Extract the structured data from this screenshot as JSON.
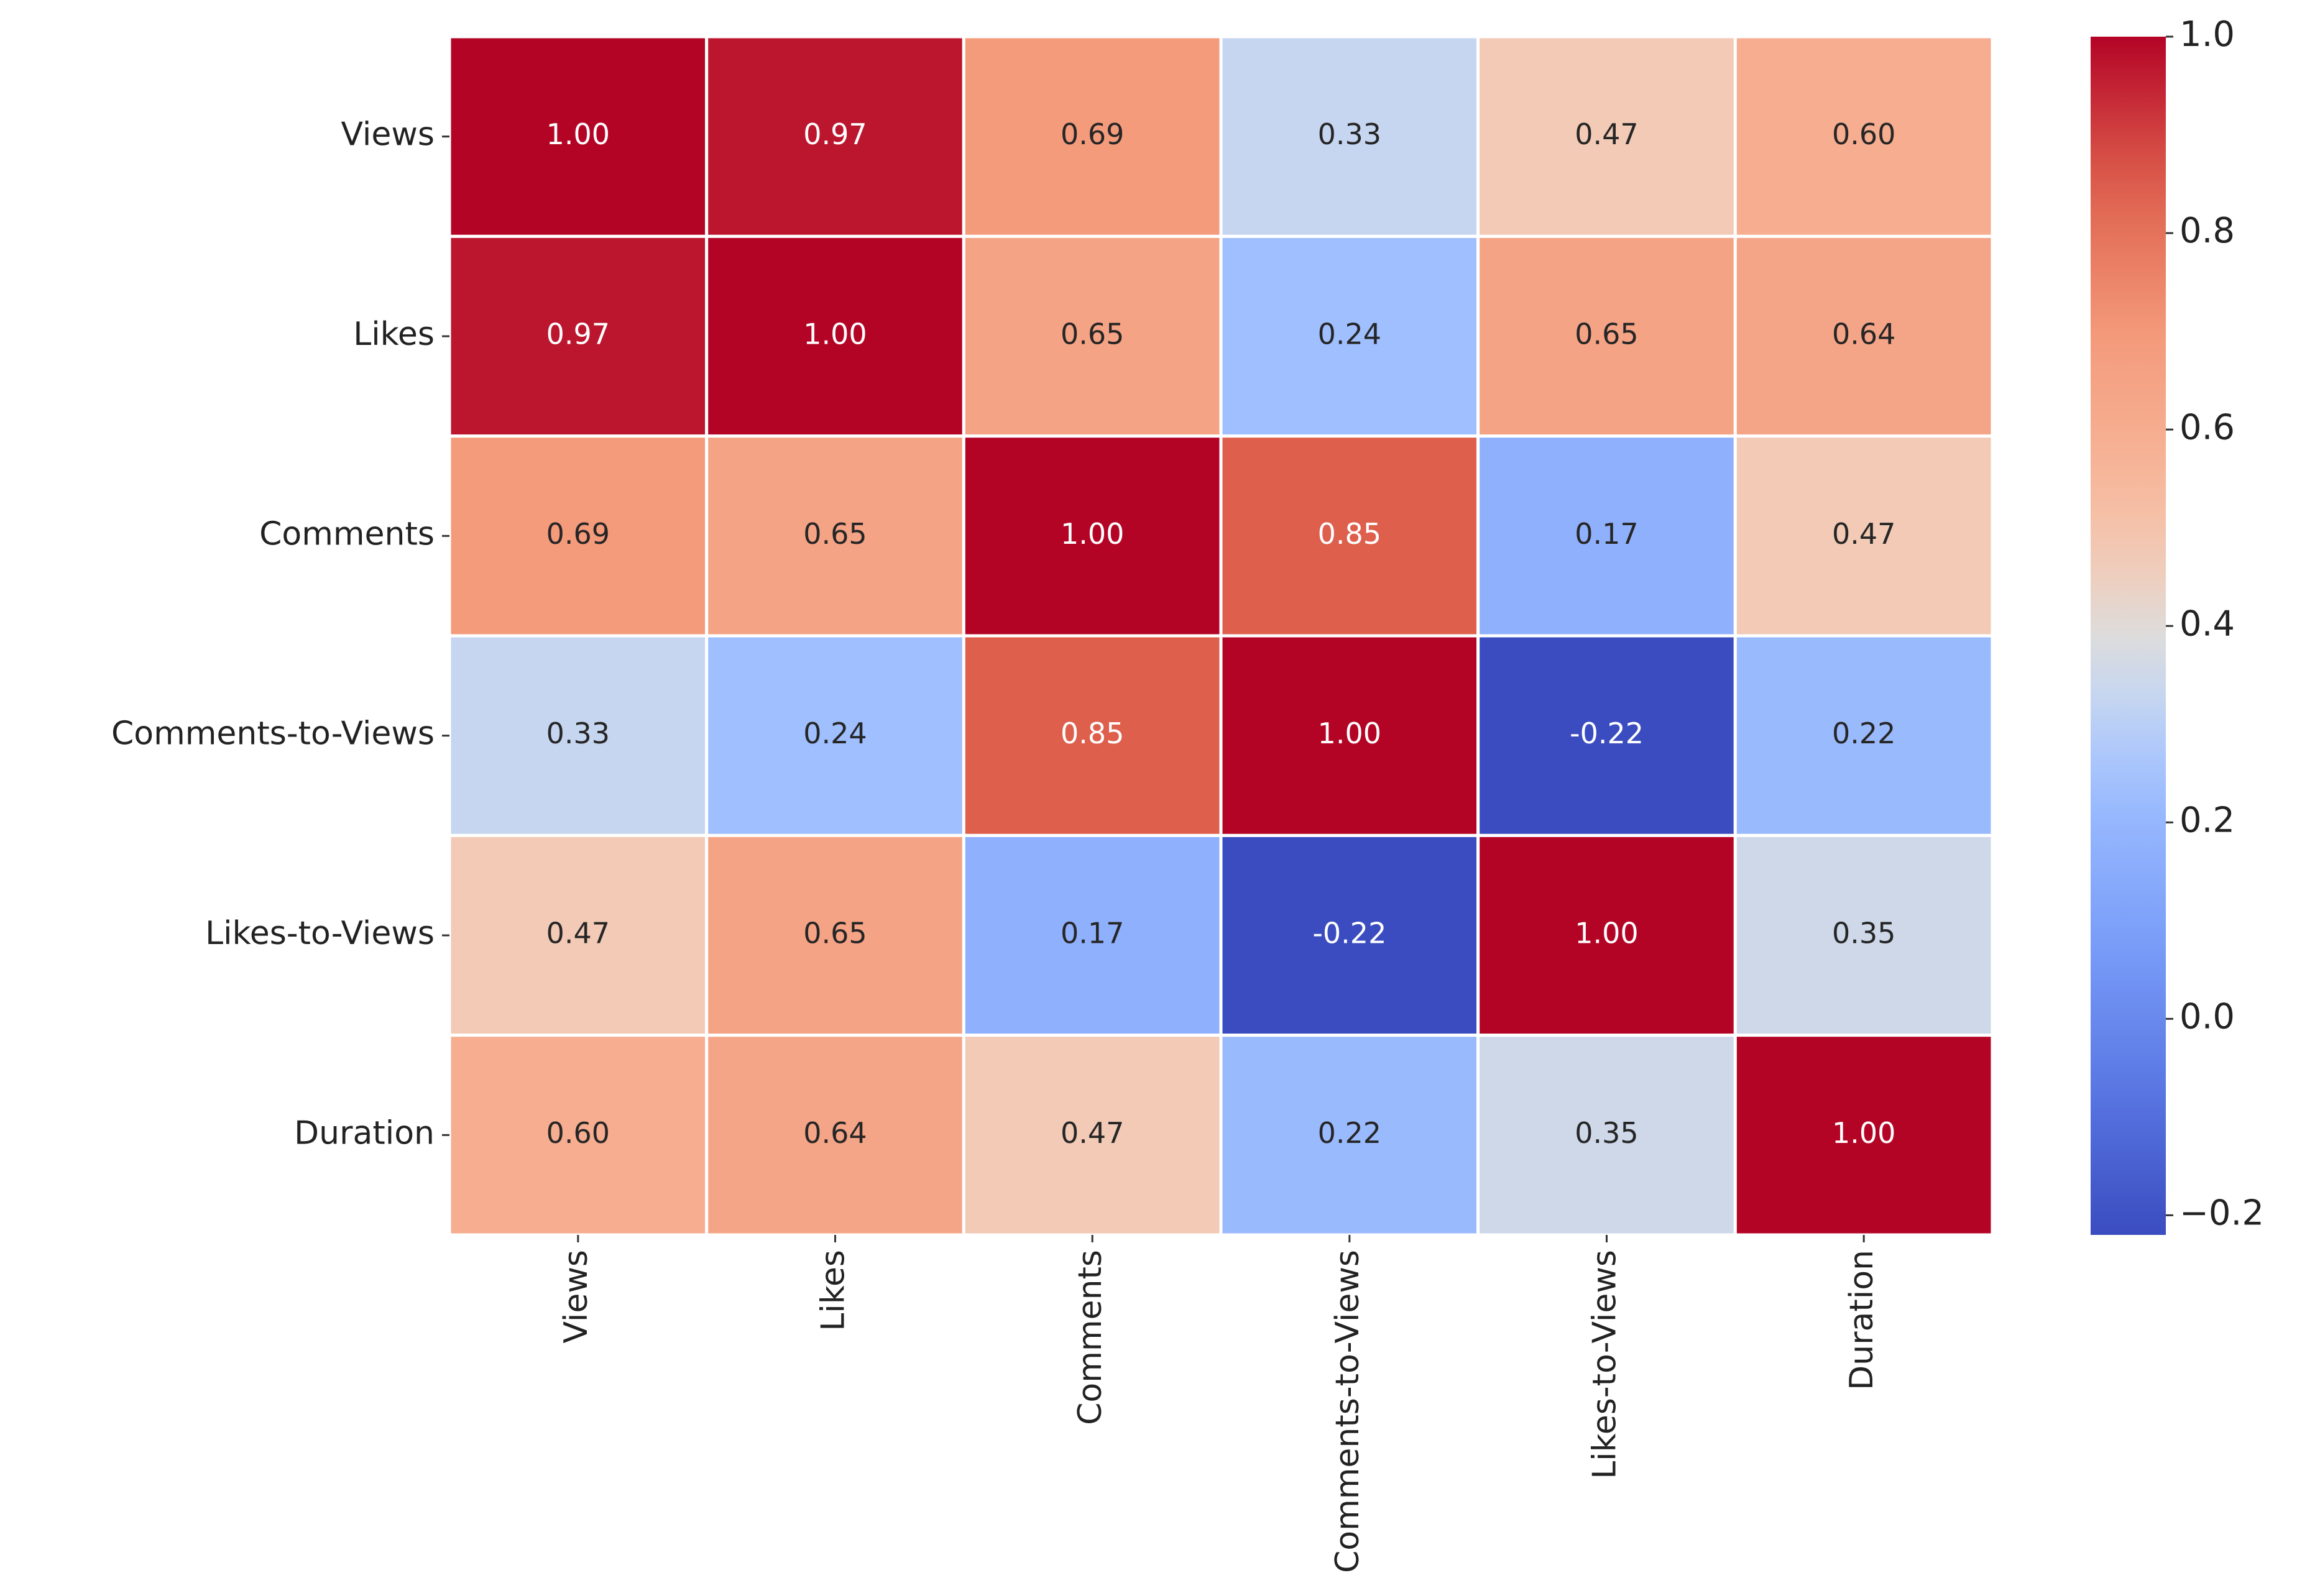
{
  "chart_data": {
    "type": "heatmap",
    "x_categories": [
      "Views",
      "Likes",
      "Comments",
      "Comments-to-Views",
      "Likes-to-Views",
      "Duration"
    ],
    "y_categories": [
      "Views",
      "Likes",
      "Comments",
      "Comments-to-Views",
      "Likes-to-Views",
      "Duration"
    ],
    "values": [
      [
        1,
        0.97,
        0.69,
        0.33,
        0.47,
        0.6
      ],
      [
        0.97,
        1,
        0.65,
        0.24,
        0.65,
        0.64
      ],
      [
        0.69,
        0.65,
        1,
        0.85,
        0.17,
        0.47
      ],
      [
        0.33,
        0.24,
        0.85,
        1,
        -0.22,
        0.22
      ],
      [
        0.47,
        0.65,
        0.17,
        -0.22,
        1,
        0.35
      ],
      [
        0.6,
        0.64,
        0.47,
        0.22,
        0.35,
        1
      ]
    ],
    "value_labels": [
      [
        "1.00",
        "0.97",
        "0.69",
        "0.33",
        "0.47",
        "0.60"
      ],
      [
        "0.97",
        "1.00",
        "0.65",
        "0.24",
        "0.65",
        "0.64"
      ],
      [
        "0.69",
        "0.65",
        "1.00",
        "0.85",
        "0.17",
        "0.47"
      ],
      [
        "0.33",
        "0.24",
        "0.85",
        "1.00",
        "-0.22",
        "0.22"
      ],
      [
        "0.47",
        "0.65",
        "0.17",
        "-0.22",
        "1.00",
        "0.35"
      ],
      [
        "0.60",
        "0.64",
        "0.47",
        "0.22",
        "0.35",
        "1.00"
      ]
    ],
    "colormap": "coolwarm",
    "clim": [
      -0.22,
      1
    ],
    "colorbar_ticks": [
      {
        "value": 1,
        "label": "1.0"
      },
      0.8,
      0.6,
      0.4,
      0.2,
      {
        "value": 0,
        "label": "0.0"
      },
      {
        "value": -0.2,
        "label": "−0.2"
      }
    ]
  }
}
